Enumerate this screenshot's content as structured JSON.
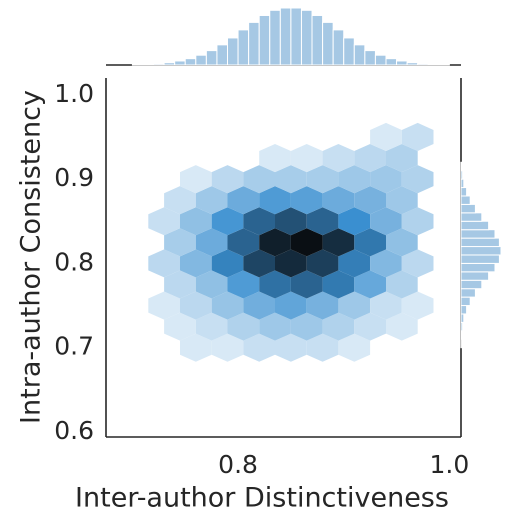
{
  "chart_data": {
    "type": "hexbin",
    "xlabel": "Inter-author Distinctiveness",
    "ylabel": "Intra-author Consistency",
    "xlim": [
      0.675,
      1.011
    ],
    "ylim": [
      0.594,
      1.02
    ],
    "xticks": [
      0.8,
      {
        "value": 1.0,
        "label": "1.0"
      }
    ],
    "yticks": [
      0.6,
      0.7,
      0.8,
      0.9,
      {
        "value": 1.0,
        "label": "1.0"
      }
    ],
    "grid": false,
    "cmap": [
      "#ffffff",
      "#3a8fd0",
      "#0a0f14"
    ],
    "hexbin": {
      "x": [
        0.76,
        0.79,
        0.82,
        0.85,
        0.88,
        0.91,
        0.745,
        0.775,
        0.805,
        0.835,
        0.865,
        0.895,
        0.925,
        0.955,
        0.73,
        0.76,
        0.79,
        0.82,
        0.85,
        0.88,
        0.91,
        0.94,
        0.97,
        0.745,
        0.775,
        0.805,
        0.835,
        0.865,
        0.895,
        0.925,
        0.955,
        0.73,
        0.76,
        0.79,
        0.82,
        0.85,
        0.88,
        0.91,
        0.94,
        0.97,
        0.745,
        0.775,
        0.805,
        0.835,
        0.865,
        0.895,
        0.925,
        0.955,
        0.73,
        0.76,
        0.79,
        0.82,
        0.85,
        0.88,
        0.91,
        0.94,
        0.97,
        0.745,
        0.775,
        0.805,
        0.835,
        0.865,
        0.895,
        0.925,
        0.955,
        0.76,
        0.79,
        0.82,
        0.85,
        0.88,
        0.91,
        0.94,
        0.97,
        0.835,
        0.865,
        0.895,
        0.925,
        0.955,
        0.94,
        0.97
      ],
      "y": [
        0.7,
        0.7,
        0.7,
        0.7,
        0.7,
        0.7,
        0.725,
        0.725,
        0.725,
        0.725,
        0.725,
        0.725,
        0.725,
        0.725,
        0.75,
        0.75,
        0.75,
        0.75,
        0.75,
        0.75,
        0.75,
        0.75,
        0.75,
        0.775,
        0.775,
        0.775,
        0.775,
        0.775,
        0.775,
        0.775,
        0.775,
        0.8,
        0.8,
        0.8,
        0.8,
        0.8,
        0.8,
        0.8,
        0.8,
        0.8,
        0.825,
        0.825,
        0.825,
        0.825,
        0.825,
        0.825,
        0.825,
        0.825,
        0.85,
        0.85,
        0.85,
        0.85,
        0.85,
        0.85,
        0.85,
        0.85,
        0.85,
        0.875,
        0.875,
        0.875,
        0.875,
        0.875,
        0.875,
        0.875,
        0.875,
        0.9,
        0.9,
        0.9,
        0.9,
        0.9,
        0.9,
        0.9,
        0.9,
        0.925,
        0.925,
        0.925,
        0.925,
        0.925,
        0.95,
        0.95
      ],
      "counts": [
        1,
        1,
        2,
        2,
        2,
        1,
        1,
        2,
        4,
        6,
        6,
        4,
        2,
        1,
        1,
        3,
        7,
        13,
        16,
        12,
        6,
        2,
        1,
        3,
        8,
        20,
        38,
        45,
        34,
        15,
        4,
        3,
        10,
        30,
        62,
        80,
        66,
        32,
        10,
        3,
        5,
        14,
        45,
        88,
        100,
        78,
        35,
        8,
        2,
        8,
        22,
        45,
        55,
        45,
        25,
        12,
        4,
        2,
        6,
        14,
        20,
        18,
        14,
        12,
        6,
        1,
        3,
        5,
        5,
        5,
        6,
        6,
        4,
        1,
        1,
        2,
        3,
        4,
        1,
        2
      ]
    },
    "marginal_x": {
      "color": "#a6c8e4",
      "bins": [
        0.7,
        0.71,
        0.72,
        0.73,
        0.74,
        0.75,
        0.76,
        0.77,
        0.78,
        0.79,
        0.8,
        0.81,
        0.82,
        0.83,
        0.84,
        0.85,
        0.86,
        0.87,
        0.88,
        0.89,
        0.9,
        0.91,
        0.92,
        0.93,
        0.94,
        0.95,
        0.96,
        0.97,
        0.98,
        0.99,
        1.0
      ],
      "counts": [
        1,
        1,
        2,
        4,
        7,
        11,
        17,
        25,
        35,
        47,
        61,
        74,
        86,
        95,
        99,
        99,
        95,
        86,
        74,
        61,
        47,
        35,
        25,
        17,
        11,
        7,
        4,
        2,
        1,
        1
      ]
    },
    "marginal_y": {
      "color": "#a6c8e4",
      "bins": [
        0.7,
        0.71,
        0.72,
        0.73,
        0.74,
        0.75,
        0.76,
        0.77,
        0.78,
        0.79,
        0.8,
        0.81,
        0.82,
        0.83,
        0.84,
        0.85,
        0.86,
        0.87,
        0.88,
        0.89,
        0.9,
        0.91,
        0.92
      ],
      "counts": [
        1,
        2,
        4,
        7,
        14,
        23,
        36,
        52,
        69,
        85,
        96,
        100,
        96,
        85,
        69,
        52,
        36,
        23,
        14,
        7,
        4,
        2
      ]
    }
  }
}
